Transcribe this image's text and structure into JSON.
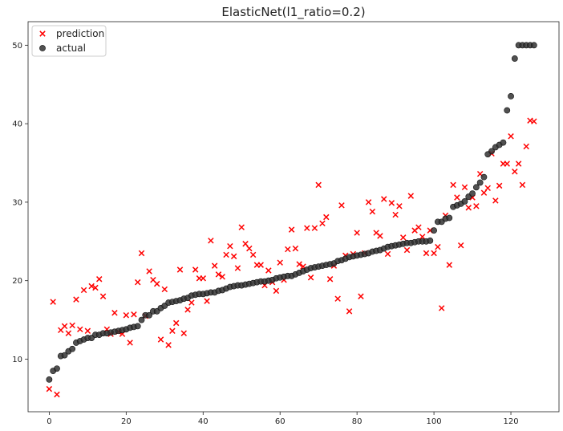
{
  "chart_data": {
    "type": "scatter",
    "title": "ElasticNet(l1_ratio=0.2)",
    "xlabel": "",
    "ylabel": "",
    "xlim": [
      -5.5,
      132.5
    ],
    "ylim": [
      3.3,
      53.0
    ],
    "xticks": [
      0,
      20,
      40,
      60,
      80,
      100,
      120
    ],
    "yticks": [
      10,
      20,
      30,
      40,
      50
    ],
    "grid": false,
    "legend_position": "top-left",
    "series": [
      {
        "name": "prediction",
        "marker": "x",
        "color": "#ff0000",
        "x": [
          0,
          1,
          2,
          3,
          4,
          5,
          6,
          7,
          8,
          9,
          10,
          11,
          12,
          13,
          14,
          15,
          16,
          17,
          18,
          19,
          20,
          21,
          22,
          23,
          24,
          25,
          26,
          27,
          28,
          29,
          30,
          31,
          32,
          33,
          34,
          35,
          36,
          37,
          38,
          39,
          40,
          41,
          42,
          43,
          44,
          45,
          46,
          47,
          48,
          49,
          50,
          51,
          52,
          53,
          54,
          55,
          56,
          57,
          58,
          59,
          60,
          61,
          62,
          63,
          64,
          65,
          66,
          67,
          68,
          69,
          70,
          71,
          72,
          73,
          74,
          75,
          76,
          77,
          78,
          79,
          80,
          81,
          82,
          83,
          84,
          85,
          86,
          87,
          88,
          89,
          90,
          91,
          92,
          93,
          94,
          95,
          96,
          97,
          98,
          99,
          100,
          101,
          102,
          103,
          104,
          105,
          106,
          107,
          108,
          109,
          110,
          111,
          112,
          113,
          114,
          115,
          116,
          117,
          118,
          119,
          120,
          121,
          122,
          123,
          124,
          125,
          126
        ],
        "y": [
          6.2,
          17.3,
          5.5,
          13.7,
          14.2,
          13.3,
          14.3,
          17.6,
          13.8,
          18.8,
          13.6,
          19.3,
          19.1,
          20.2,
          18.0,
          13.8,
          13.2,
          15.9,
          13.5,
          13.2,
          15.6,
          12.1,
          15.7,
          19.8,
          23.5,
          15.5,
          21.2,
          20.1,
          19.6,
          12.5,
          18.9,
          11.8,
          13.6,
          14.6,
          21.4,
          13.3,
          16.3,
          17.2,
          21.4,
          20.3,
          20.3,
          17.4,
          25.1,
          21.9,
          20.8,
          20.5,
          23.3,
          24.4,
          23.1,
          21.6,
          26.8,
          24.7,
          24.1,
          23.3,
          22.0,
          22.0,
          19.4,
          21.3,
          19.8,
          18.7,
          22.3,
          20.1,
          24.0,
          26.5,
          24.1,
          22.1,
          21.8,
          26.7,
          20.4,
          26.7,
          32.2,
          27.3,
          28.1,
          20.2,
          21.9,
          17.7,
          29.6,
          23.2,
          16.1,
          23.4,
          26.1,
          18.0,
          23.5,
          30.0,
          28.8,
          26.1,
          25.7,
          30.4,
          23.4,
          29.9,
          28.4,
          29.5,
          25.5,
          23.9,
          30.8,
          26.4,
          26.8,
          25.6,
          23.5,
          26.4,
          23.5,
          24.3,
          16.5,
          28.3,
          22.0,
          32.2,
          30.6,
          24.5,
          31.9,
          29.3,
          30.6,
          29.5,
          33.6,
          31.2,
          31.8,
          36.2,
          30.2,
          32.1,
          34.9,
          34.9,
          38.4,
          33.9,
          34.9,
          32.2,
          37.1,
          40.4,
          40.3
        ]
      },
      {
        "name": "actual",
        "marker": "o",
        "color": "#333333",
        "x": [
          0,
          1,
          2,
          3,
          4,
          5,
          6,
          7,
          8,
          9,
          10,
          11,
          12,
          13,
          14,
          15,
          16,
          17,
          18,
          19,
          20,
          21,
          22,
          23,
          24,
          25,
          26,
          27,
          28,
          29,
          30,
          31,
          32,
          33,
          34,
          35,
          36,
          37,
          38,
          39,
          40,
          41,
          42,
          43,
          44,
          45,
          46,
          47,
          48,
          49,
          50,
          51,
          52,
          53,
          54,
          55,
          56,
          57,
          58,
          59,
          60,
          61,
          62,
          63,
          64,
          65,
          66,
          67,
          68,
          69,
          70,
          71,
          72,
          73,
          74,
          75,
          76,
          77,
          78,
          79,
          80,
          81,
          82,
          83,
          84,
          85,
          86,
          87,
          88,
          89,
          90,
          91,
          92,
          93,
          94,
          95,
          96,
          97,
          98,
          99,
          100,
          101,
          102,
          103,
          104,
          105,
          106,
          107,
          108,
          109,
          110,
          111,
          112,
          113,
          114,
          115,
          116,
          117,
          118,
          119,
          120,
          121,
          122,
          123,
          124,
          125,
          126
        ],
        "y": [
          7.4,
          8.5,
          8.8,
          10.4,
          10.5,
          11.0,
          11.3,
          12.1,
          12.3,
          12.5,
          12.7,
          12.7,
          13.1,
          13.1,
          13.3,
          13.3,
          13.4,
          13.5,
          13.6,
          13.7,
          13.8,
          14.0,
          14.1,
          14.2,
          15.0,
          15.6,
          15.6,
          16.1,
          16.1,
          16.5,
          16.8,
          17.2,
          17.3,
          17.4,
          17.5,
          17.7,
          17.8,
          18.1,
          18.2,
          18.3,
          18.3,
          18.4,
          18.5,
          18.5,
          18.7,
          18.8,
          19.0,
          19.2,
          19.3,
          19.4,
          19.4,
          19.5,
          19.6,
          19.7,
          19.8,
          19.9,
          19.9,
          20.0,
          20.1,
          20.3,
          20.4,
          20.5,
          20.6,
          20.6,
          20.8,
          21.0,
          21.2,
          21.4,
          21.6,
          21.7,
          21.8,
          21.9,
          22.0,
          22.1,
          22.2,
          22.5,
          22.6,
          22.8,
          23.0,
          23.1,
          23.2,
          23.3,
          23.4,
          23.5,
          23.7,
          23.8,
          23.9,
          24.1,
          24.3,
          24.4,
          24.5,
          24.6,
          24.7,
          24.8,
          24.8,
          24.9,
          25.0,
          25.0,
          25.0,
          25.1,
          26.4,
          27.5,
          27.5,
          27.9,
          28.0,
          29.4,
          29.6,
          29.8,
          30.1,
          30.7,
          31.1,
          31.9,
          32.5,
          33.2,
          36.1,
          36.5,
          37.0,
          37.3,
          37.6,
          41.7,
          43.5,
          48.3,
          50.0,
          50.0,
          50.0,
          50.0,
          50.0
        ]
      }
    ]
  }
}
